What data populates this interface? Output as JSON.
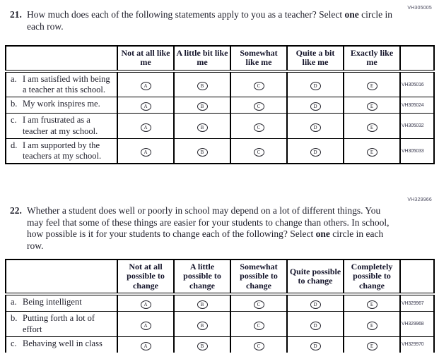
{
  "options": [
    "A",
    "B",
    "C",
    "D",
    "E"
  ],
  "q21": {
    "number": "21.",
    "ref_code": "VH305005",
    "text_pre": "How much does each of the following statements apply to you as a teacher? Select ",
    "text_bold": "one",
    "text_post": " circle in each row.",
    "headers": [
      "Not at all like me",
      "A little bit like me",
      "Somewhat like me",
      "Quite a bit like me",
      "Exactly like me"
    ],
    "rows": [
      {
        "letter": "a.",
        "statement": "I am satisfied with being a teacher at this school.",
        "code": "VH305016"
      },
      {
        "letter": "b.",
        "statement": "My work inspires me.",
        "code": "VH305024"
      },
      {
        "letter": "c.",
        "statement": "I am frustrated as a teacher at my school.",
        "code": "VH305032"
      },
      {
        "letter": "d.",
        "statement": "I am supported by the teachers at my school.",
        "code": "VH305033"
      }
    ]
  },
  "q22": {
    "number": "22.",
    "ref_code": "VH329966",
    "text_pre": "Whether a student does well or poorly in school may depend on a lot of different things. You may feel that some of these things are easier for your students to change than others. In school, how possible is it for your students to change each of the following? Select ",
    "text_bold": "one",
    "text_post": " circle in each row.",
    "headers": [
      "Not at all possible to change",
      "A little possible to change",
      "Somewhat possible to change",
      "Quite possible to change",
      "Completely possible to change"
    ],
    "rows": [
      {
        "letter": "a.",
        "statement": "Being intelligent",
        "code": "VH329967"
      },
      {
        "letter": "b.",
        "statement": "Putting forth a lot of effort",
        "code": "VH329968"
      },
      {
        "letter": "c.",
        "statement": "Behaving well in class",
        "code": "VH329970"
      }
    ]
  }
}
